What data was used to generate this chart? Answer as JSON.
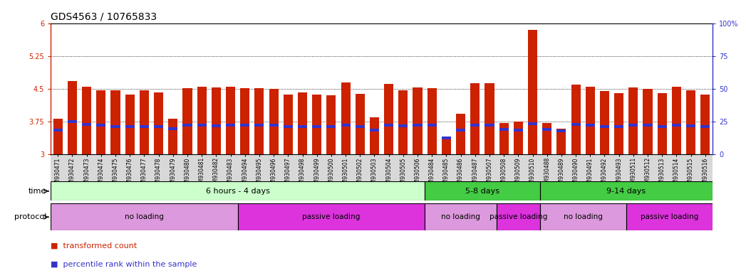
{
  "title": "GDS4563 / 10765833",
  "samples": [
    "GSM930471",
    "GSM930472",
    "GSM930473",
    "GSM930474",
    "GSM930475",
    "GSM930476",
    "GSM930477",
    "GSM930478",
    "GSM930479",
    "GSM930480",
    "GSM930481",
    "GSM930482",
    "GSM930483",
    "GSM930494",
    "GSM930495",
    "GSM930496",
    "GSM930497",
    "GSM930498",
    "GSM930499",
    "GSM930500",
    "GSM930501",
    "GSM930502",
    "GSM930503",
    "GSM930504",
    "GSM930505",
    "GSM930506",
    "GSM930484",
    "GSM930485",
    "GSM930486",
    "GSM930487",
    "GSM930507",
    "GSM930508",
    "GSM930509",
    "GSM930510",
    "GSM930488",
    "GSM930489",
    "GSM930490",
    "GSM930491",
    "GSM930492",
    "GSM930493",
    "GSM930511",
    "GSM930512",
    "GSM930513",
    "GSM930514",
    "GSM930515",
    "GSM930516"
  ],
  "bar_values": [
    3.82,
    4.68,
    4.55,
    4.47,
    4.46,
    4.37,
    4.47,
    4.41,
    3.82,
    4.52,
    4.55,
    4.53,
    4.55,
    4.52,
    4.51,
    4.5,
    4.36,
    4.41,
    4.37,
    4.35,
    4.64,
    4.38,
    3.84,
    4.61,
    4.47,
    4.53,
    4.52,
    3.4,
    3.92,
    4.63,
    4.62,
    3.71,
    3.75,
    5.84,
    3.71,
    3.58,
    4.6,
    4.54,
    4.44,
    4.4,
    4.53,
    4.5,
    4.4,
    4.54,
    4.47,
    4.36
  ],
  "percentile_values": [
    3.55,
    3.75,
    3.68,
    3.66,
    3.64,
    3.63,
    3.64,
    3.63,
    3.58,
    3.67,
    3.67,
    3.65,
    3.67,
    3.67,
    3.67,
    3.66,
    3.63,
    3.63,
    3.63,
    3.63,
    3.67,
    3.63,
    3.55,
    3.67,
    3.65,
    3.67,
    3.67,
    3.38,
    3.55,
    3.67,
    3.67,
    3.57,
    3.55,
    3.7,
    3.57,
    3.54,
    3.68,
    3.67,
    3.63,
    3.63,
    3.67,
    3.66,
    3.63,
    3.67,
    3.65,
    3.63
  ],
  "ylim_left": [
    3.0,
    6.0
  ],
  "ylim_right": [
    0,
    100
  ],
  "yticks_left": [
    3.0,
    3.75,
    4.5,
    5.25,
    6.0
  ],
  "yticks_right": [
    0,
    25,
    50,
    75,
    100
  ],
  "ytick_labels_left": [
    "3",
    "3.75",
    "4.5",
    "5.25",
    "6"
  ],
  "ytick_labels_right": [
    "0",
    "25",
    "50",
    "75",
    "100%"
  ],
  "gridlines": [
    3.75,
    4.5,
    5.25
  ],
  "bar_color": "#cc2200",
  "percentile_color": "#3333cc",
  "bar_bottom": 3.0,
  "time_groups": [
    {
      "label": "6 hours - 4 days",
      "start": 0,
      "end": 26,
      "color": "#ccffcc"
    },
    {
      "label": "5-8 days",
      "start": 26,
      "end": 34,
      "color": "#44cc44"
    },
    {
      "label": "9-14 days",
      "start": 34,
      "end": 46,
      "color": "#44cc44"
    }
  ],
  "protocol_groups": [
    {
      "label": "no loading",
      "start": 0,
      "end": 13,
      "color": "#dd99dd"
    },
    {
      "label": "passive loading",
      "start": 13,
      "end": 26,
      "color": "#dd33dd"
    },
    {
      "label": "no loading",
      "start": 26,
      "end": 31,
      "color": "#dd99dd"
    },
    {
      "label": "passive loading",
      "start": 31,
      "end": 34,
      "color": "#dd33dd"
    },
    {
      "label": "no loading",
      "start": 34,
      "end": 40,
      "color": "#dd99dd"
    },
    {
      "label": "passive loading",
      "start": 40,
      "end": 46,
      "color": "#dd33dd"
    }
  ],
  "legend_red": "transformed count",
  "legend_blue": "percentile rank within the sample",
  "title_fontsize": 10,
  "tick_fontsize": 7,
  "bar_label_fontsize": 5.5,
  "row_label_fontsize": 8,
  "group_label_fontsize": 8,
  "background_color": "#ffffff",
  "xtick_bg_color": "#d8d8d8"
}
